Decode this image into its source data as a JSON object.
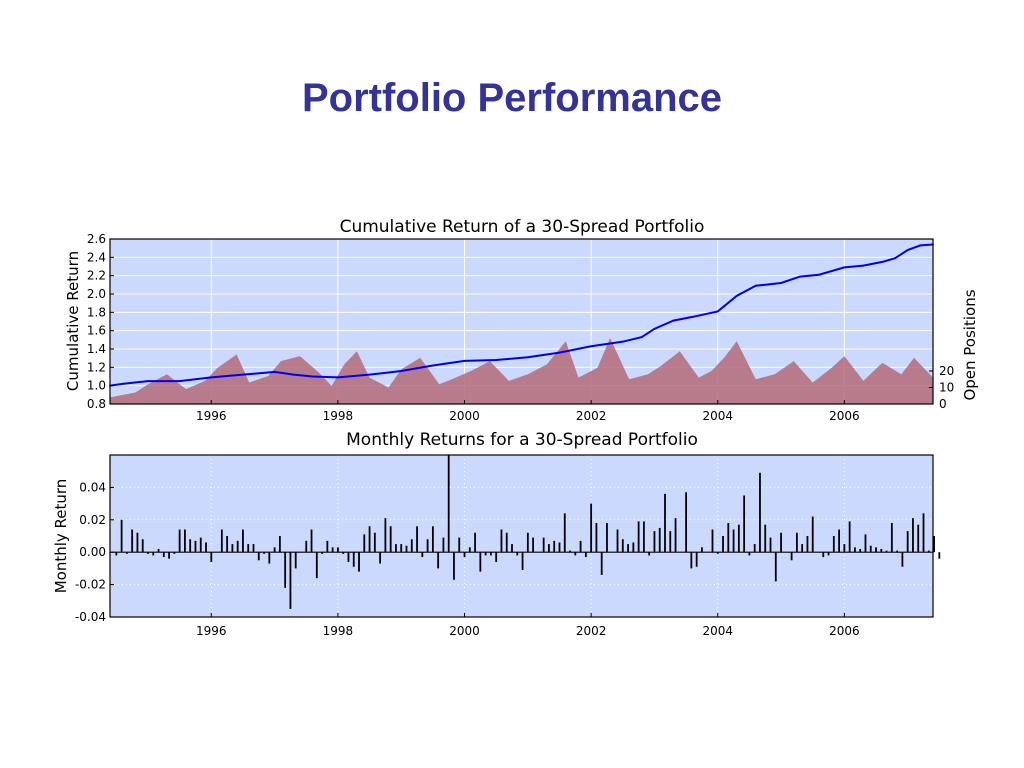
{
  "slide": {
    "title": "Portfolio Performance"
  },
  "colors": {
    "title": "#333399",
    "panel_bg": "#ccd9ff",
    "cum_line": "#0000ee",
    "positions_fill": "#b46a78",
    "bars": "#000000"
  },
  "chart_data": [
    {
      "type": "line",
      "title": "Cumulative Return of a 30-Spread Portfolio",
      "xlabel": "",
      "ylabel": "Cumulative Return",
      "y2label": "Open Positions",
      "xlim": [
        1994.4,
        2007.4
      ],
      "ylim": [
        0.8,
        2.6
      ],
      "y2lim": [
        0,
        100
      ],
      "xticks": [
        "1996",
        "1998",
        "2000",
        "2002",
        "2004",
        "2006"
      ],
      "xtick_values": [
        1996,
        1998,
        2000,
        2002,
        2004,
        2006
      ],
      "yticks": [
        "0.8",
        "1.0",
        "1.2",
        "1.4",
        "1.6",
        "1.8",
        "2.0",
        "2.2",
        "2.4",
        "2.6"
      ],
      "ytick_values": [
        0.8,
        1.0,
        1.2,
        1.4,
        1.6,
        1.8,
        2.0,
        2.2,
        2.4,
        2.6
      ],
      "y2ticks": [
        "0",
        "10",
        "20"
      ],
      "y2tick_values": [
        0,
        10,
        20
      ],
      "grid": true,
      "series": [
        {
          "kind": "line",
          "x": [
            1994.4,
            1994.6,
            1995.0,
            1995.5,
            1996.0,
            1996.5,
            1997.0,
            1997.3,
            1997.6,
            1998.0,
            1998.5,
            1999.0,
            1999.5,
            2000.0,
            2000.5,
            2001.0,
            2001.5,
            2002.0,
            2002.5,
            2002.8,
            2003.0,
            2003.3,
            2003.6,
            2004.0,
            2004.3,
            2004.6,
            2005.0,
            2005.3,
            2005.6,
            2006.0,
            2006.3,
            2006.6,
            2006.8,
            2007.0,
            2007.2,
            2007.4
          ],
          "y": [
            1.0,
            1.02,
            1.05,
            1.05,
            1.09,
            1.12,
            1.15,
            1.12,
            1.1,
            1.09,
            1.12,
            1.16,
            1.22,
            1.27,
            1.28,
            1.31,
            1.36,
            1.43,
            1.48,
            1.53,
            1.62,
            1.71,
            1.75,
            1.81,
            1.98,
            2.09,
            2.12,
            2.19,
            2.21,
            2.29,
            2.31,
            2.35,
            2.39,
            2.48,
            2.53,
            2.54
          ]
        },
        {
          "kind": "area",
          "x": [
            1994.4,
            1994.8,
            1995.0,
            1995.3,
            1995.6,
            1995.9,
            1996.1,
            1996.4,
            1996.6,
            1996.9,
            1997.1,
            1997.4,
            1997.7,
            1997.9,
            1998.1,
            1998.3,
            1998.5,
            1998.8,
            1999.0,
            1999.3,
            1999.6,
            1999.8,
            2000.1,
            2000.4,
            2000.7,
            2001.0,
            2001.3,
            2001.6,
            2001.8,
            2002.1,
            2002.3,
            2002.6,
            2002.9,
            2003.1,
            2003.4,
            2003.7,
            2003.9,
            2004.1,
            2004.3,
            2004.6,
            2004.9,
            2005.2,
            2005.5,
            2005.8,
            2006.0,
            2006.3,
            2006.6,
            2006.9,
            2007.1,
            2007.4
          ],
          "y": [
            4,
            7,
            12,
            18,
            9,
            14,
            22,
            30,
            13,
            17,
            26,
            29,
            19,
            11,
            24,
            32,
            16,
            10,
            21,
            28,
            12,
            15,
            20,
            26,
            14,
            18,
            24,
            38,
            16,
            22,
            40,
            15,
            18,
            23,
            32,
            16,
            20,
            28,
            38,
            15,
            18,
            26,
            13,
            22,
            29,
            14,
            25,
            18,
            28,
            16
          ]
        }
      ]
    },
    {
      "type": "bar",
      "title": "Monthly Returns for a 30-Spread Portfolio",
      "xlabel": "",
      "ylabel": "Monthly Return",
      "xlim": [
        1994.4,
        2007.4
      ],
      "ylim": [
        -0.04,
        0.06
      ],
      "xticks": [
        "1996",
        "1998",
        "2000",
        "2002",
        "2004",
        "2006"
      ],
      "xtick_values": [
        1996,
        1998,
        2000,
        2002,
        2004,
        2006
      ],
      "yticks": [
        "-0.04",
        "-0.02",
        "0.00",
        "0.02",
        "0.04"
      ],
      "ytick_values": [
        -0.04,
        -0.02,
        0.0,
        0.02,
        0.04
      ],
      "grid": true,
      "start_year": 1994.5,
      "values": [
        -0.002,
        0.02,
        -0.001,
        0.014,
        0.012,
        0.008,
        -0.001,
        -0.002,
        0.002,
        -0.003,
        -0.004,
        -0.001,
        0.014,
        0.014,
        0.008,
        0.007,
        0.009,
        0.006,
        -0.006,
        0.0,
        0.014,
        0.01,
        0.005,
        0.007,
        0.014,
        0.005,
        0.005,
        -0.005,
        -0.001,
        -0.007,
        0.003,
        0.01,
        -0.022,
        -0.035,
        -0.01,
        0.0,
        0.007,
        0.014,
        -0.016,
        -0.001,
        0.007,
        0.003,
        0.003,
        -0.001,
        -0.006,
        -0.009,
        -0.012,
        0.011,
        0.016,
        0.012,
        -0.007,
        0.021,
        0.016,
        0.005,
        0.005,
        0.004,
        0.008,
        0.016,
        -0.003,
        0.008,
        0.016,
        -0.01,
        0.009,
        0.06,
        -0.017,
        0.009,
        -0.003,
        0.003,
        0.012,
        -0.012,
        -0.002,
        -0.002,
        -0.006,
        0.014,
        0.012,
        0.005,
        -0.002,
        -0.011,
        0.012,
        0.009,
        0.0,
        0.009,
        0.005,
        0.007,
        0.006,
        0.024,
        0.001,
        -0.002,
        0.007,
        -0.003,
        0.03,
        0.018,
        -0.014,
        0.018,
        0.0,
        0.014,
        0.008,
        0.005,
        0.006,
        0.019,
        0.019,
        -0.002,
        0.013,
        0.015,
        0.036,
        0.013,
        0.021,
        0.0,
        0.037,
        -0.01,
        -0.009,
        0.003,
        0.0,
        0.014,
        -0.001,
        0.01,
        0.018,
        0.014,
        0.017,
        0.035,
        -0.002,
        0.005,
        0.049,
        0.017,
        0.009,
        -0.018,
        0.012,
        0.0,
        -0.005,
        0.012,
        0.005,
        0.01,
        0.022,
        0.0,
        -0.003,
        -0.002,
        0.01,
        0.014,
        0.005,
        0.019,
        0.003,
        0.002,
        0.011,
        0.004,
        0.003,
        0.002,
        0.001,
        0.018,
        0.001,
        -0.009,
        0.013,
        0.021,
        0.017,
        0.024,
        0.001,
        0.01,
        -0.004
      ]
    }
  ]
}
